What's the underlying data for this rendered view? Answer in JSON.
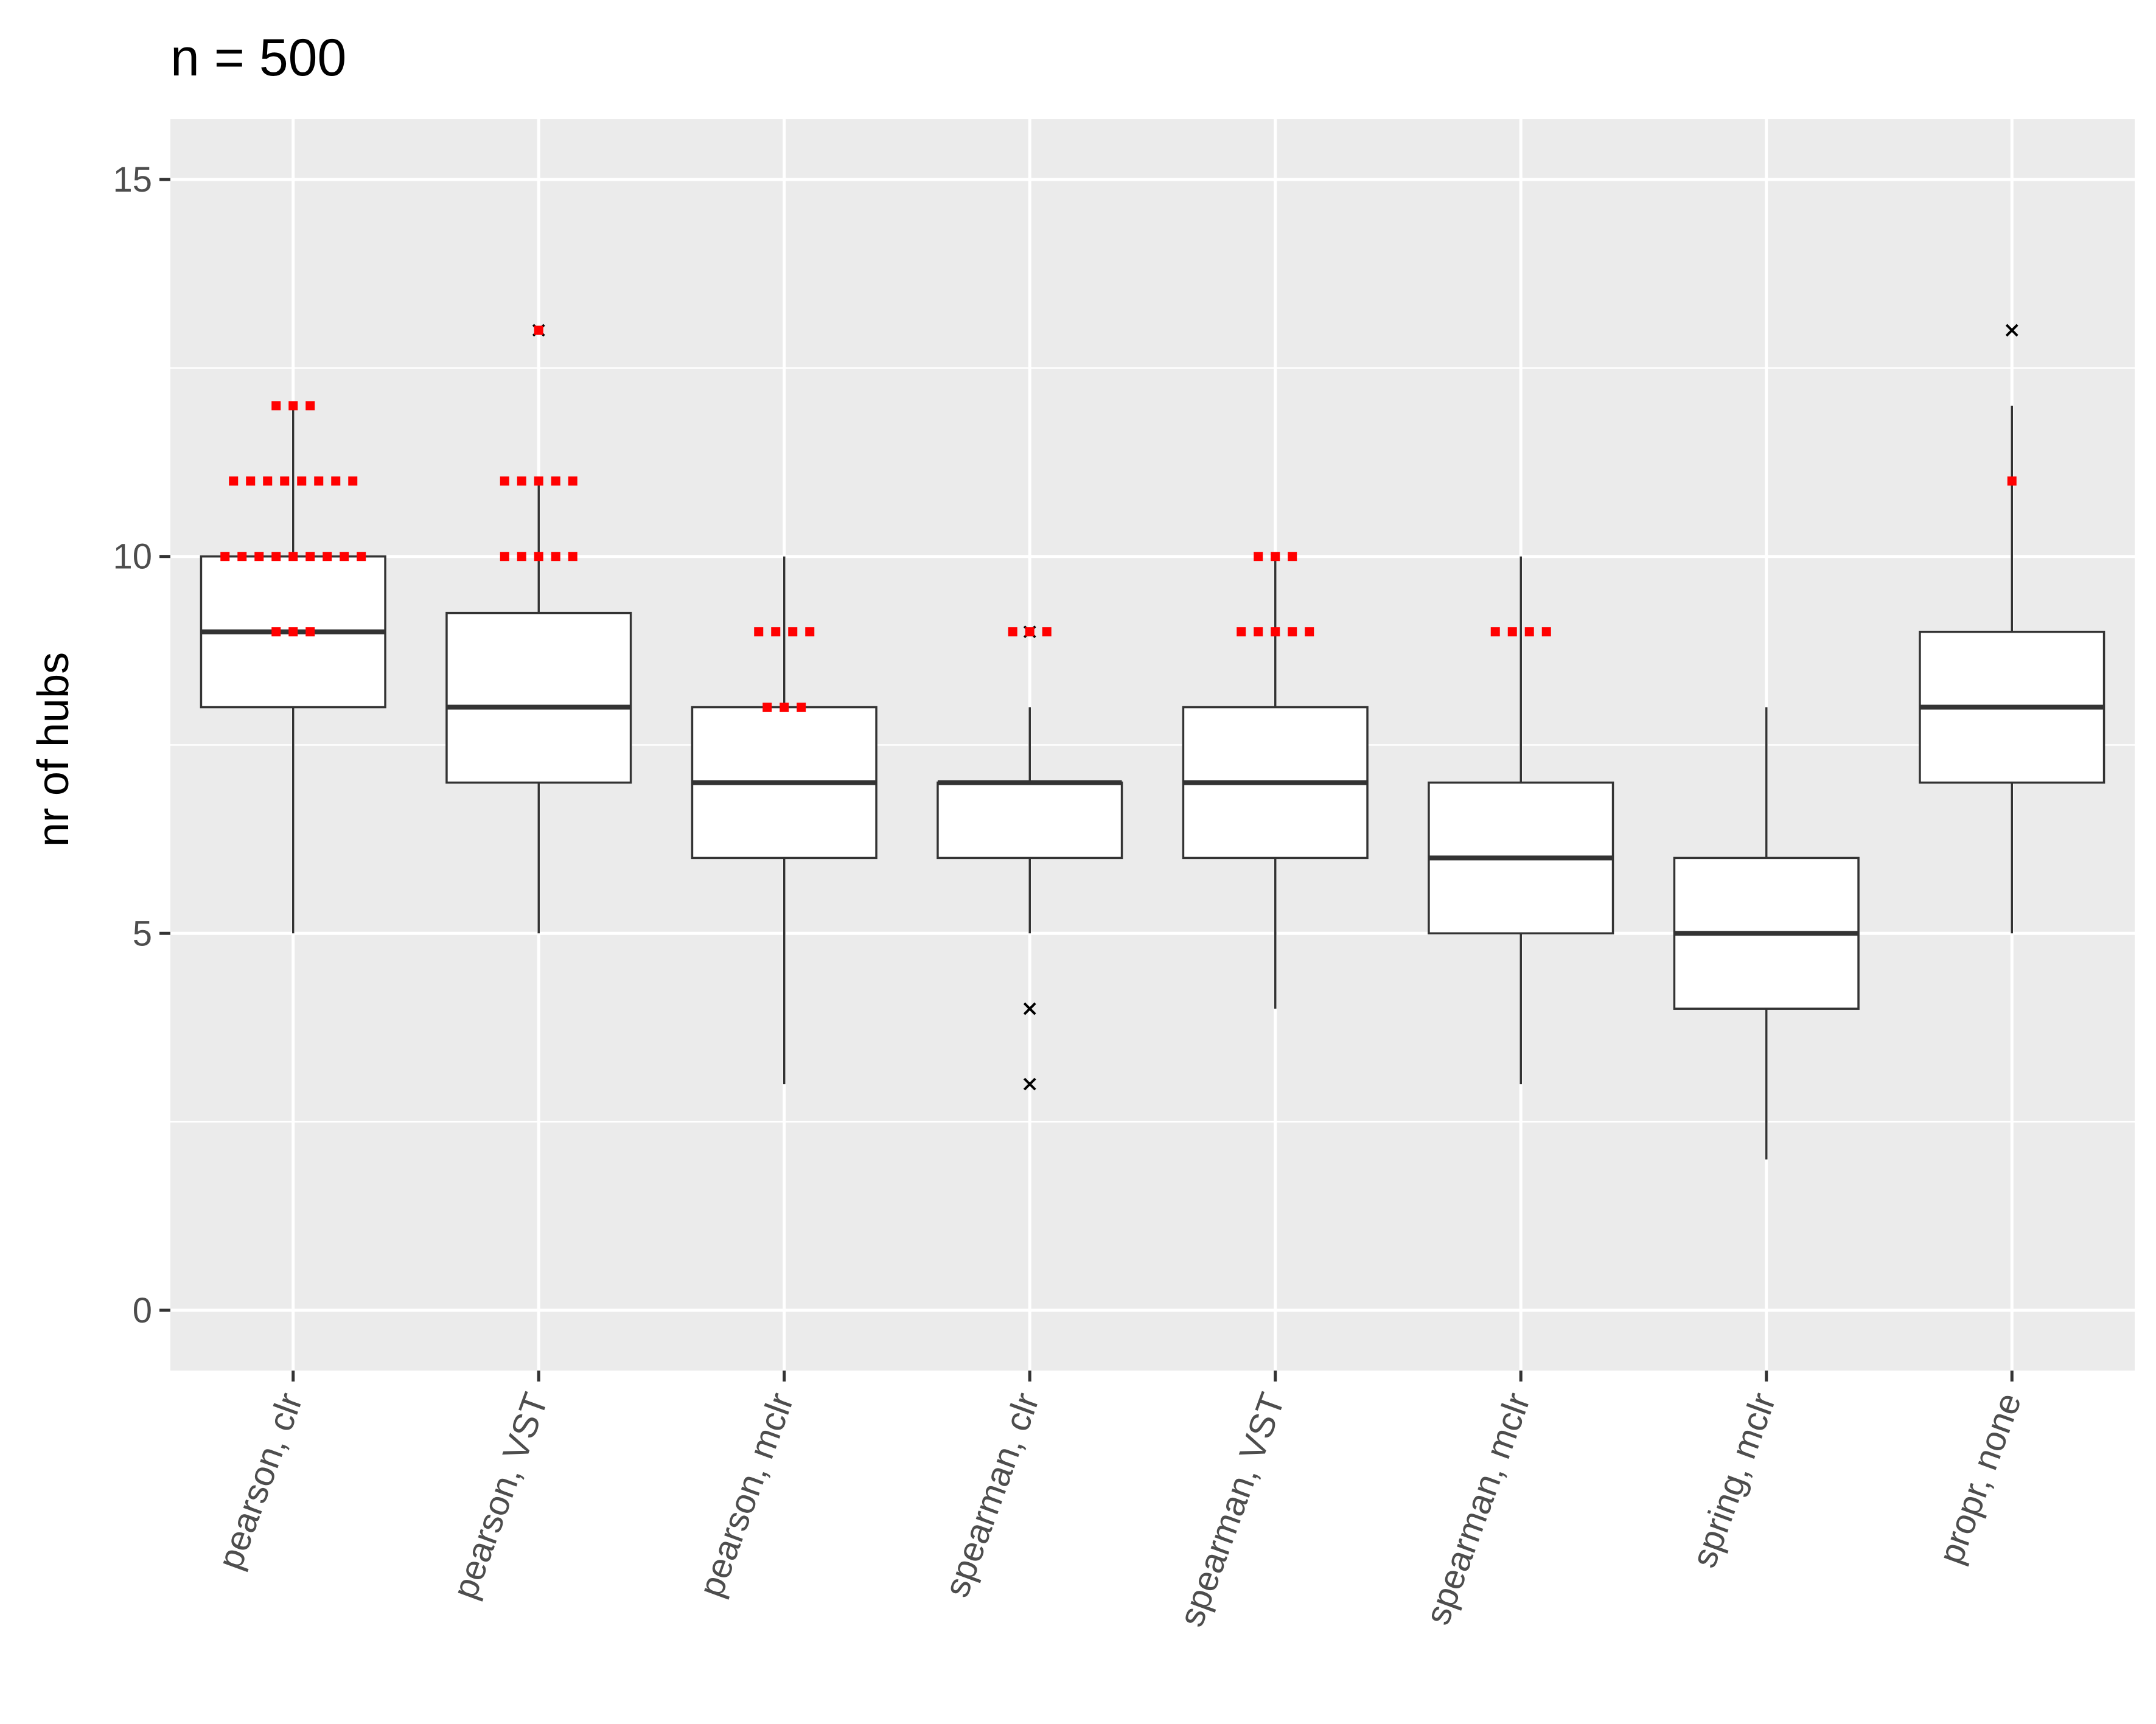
{
  "colors": {
    "panel_background": "#ebebeb",
    "gridline": "#ffffff",
    "box_fill": "#ffffff",
    "box_stroke": "#333333",
    "outlier": "#000000",
    "highlight_point": "#ff0000"
  },
  "chart_data": {
    "type": "boxplot",
    "title": "n = 500",
    "xlabel": "",
    "ylabel": "nr of hubs",
    "ylim": [
      -0.8,
      15.8
    ],
    "yticks": [
      0,
      5,
      10,
      15
    ],
    "ytick_labels": [
      "0",
      "5",
      "10",
      "15"
    ],
    "grid": true,
    "x_tick_rotation_deg": 70,
    "categories": [
      "pearson, clr",
      "pearson, VST",
      "pearson, mclr",
      "spearman, clr",
      "spearman, VST",
      "spearman, mclr",
      "spring, mclr",
      "propr, none"
    ],
    "boxes": [
      {
        "category": "pearson, clr",
        "whisker_low": 5,
        "q1": 8,
        "median": 9,
        "q3": 10,
        "whisker_high": 12,
        "outliers": []
      },
      {
        "category": "pearson, VST",
        "whisker_low": 5,
        "q1": 7,
        "median": 8,
        "q3": 9.25,
        "whisker_high": 11,
        "outliers": [
          13
        ]
      },
      {
        "category": "pearson, mclr",
        "whisker_low": 3,
        "q1": 6,
        "median": 7,
        "q3": 8,
        "whisker_high": 10,
        "outliers": []
      },
      {
        "category": "spearman, clr",
        "whisker_low": 5,
        "q1": 6,
        "median": 7,
        "q3": 7,
        "whisker_high": 8,
        "outliers": [
          9,
          4,
          3
        ]
      },
      {
        "category": "spearman, VST",
        "whisker_low": 4,
        "q1": 6,
        "median": 7,
        "q3": 8,
        "whisker_high": 10,
        "outliers": []
      },
      {
        "category": "spearman, mclr",
        "whisker_low": 3,
        "q1": 5,
        "median": 6,
        "q3": 7,
        "whisker_high": 10,
        "outliers": []
      },
      {
        "category": "spring, mclr",
        "whisker_low": 2,
        "q1": 4,
        "median": 5,
        "q3": 6,
        "whisker_high": 8,
        "outliers": []
      },
      {
        "category": "propr, none",
        "whisker_low": 5,
        "q1": 7,
        "median": 8,
        "q3": 9,
        "whisker_high": 12,
        "outliers": [
          13
        ]
      }
    ],
    "red_points": [
      {
        "category": "pearson, clr",
        "y": 12,
        "count": 3
      },
      {
        "category": "pearson, clr",
        "y": 11,
        "count": 8
      },
      {
        "category": "pearson, clr",
        "y": 10,
        "count": 9
      },
      {
        "category": "pearson, clr",
        "y": 9,
        "count": 3
      },
      {
        "category": "pearson, VST",
        "y": 13,
        "count": 1
      },
      {
        "category": "pearson, VST",
        "y": 11,
        "count": 5
      },
      {
        "category": "pearson, VST",
        "y": 10,
        "count": 5
      },
      {
        "category": "pearson, mclr",
        "y": 9,
        "count": 4
      },
      {
        "category": "pearson, mclr",
        "y": 8,
        "count": 3
      },
      {
        "category": "spearman, clr",
        "y": 9,
        "count": 3
      },
      {
        "category": "spearman, VST",
        "y": 10,
        "count": 3
      },
      {
        "category": "spearman, VST",
        "y": 9,
        "count": 5
      },
      {
        "category": "spearman, mclr",
        "y": 9,
        "count": 4
      },
      {
        "category": "propr, none",
        "y": 11,
        "count": 1
      }
    ]
  }
}
